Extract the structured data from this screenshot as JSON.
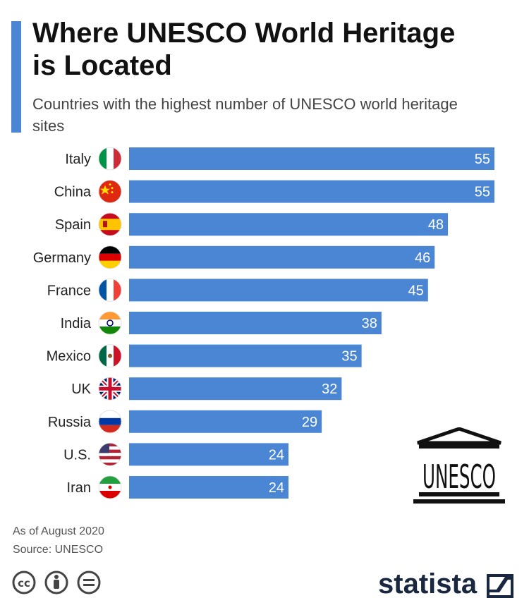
{
  "header": {
    "title": "Where UNESCO World Heritage is Located",
    "subtitle": "Countries with the highest number of UNESCO world heritage sites"
  },
  "chart_data": {
    "type": "bar",
    "orientation": "horizontal",
    "categories": [
      "Italy",
      "China",
      "Spain",
      "Germany",
      "France",
      "India",
      "Mexico",
      "UK",
      "Russia",
      "U.S.",
      "Iran"
    ],
    "values": [
      55,
      55,
      48,
      46,
      45,
      38,
      35,
      32,
      29,
      24,
      24
    ],
    "title": "Where UNESCO World Heritage is Located",
    "subtitle": "Countries with the highest number of UNESCO world heritage sites",
    "xlabel": "",
    "ylabel": "",
    "xlim": [
      0,
      55
    ],
    "grid": false,
    "legend": "none",
    "bar_color": "#4a86d4",
    "flags": [
      "italy-flag-icon",
      "china-flag-icon",
      "spain-flag-icon",
      "germany-flag-icon",
      "france-flag-icon",
      "india-flag-icon",
      "mexico-flag-icon",
      "uk-flag-icon",
      "russia-flag-icon",
      "us-flag-icon",
      "iran-flag-icon"
    ]
  },
  "footer": {
    "note": "As of August 2020",
    "source": "Source: UNESCO",
    "brand": "statista",
    "license_icons": [
      "cc-icon",
      "attribution-icon",
      "no-derivatives-icon"
    ]
  },
  "logo": {
    "text": "UNESCO",
    "icon": "unesco-temple-logo"
  },
  "colors": {
    "accent": "#4a86d4",
    "title": "#111111",
    "brand": "#1a2740"
  }
}
